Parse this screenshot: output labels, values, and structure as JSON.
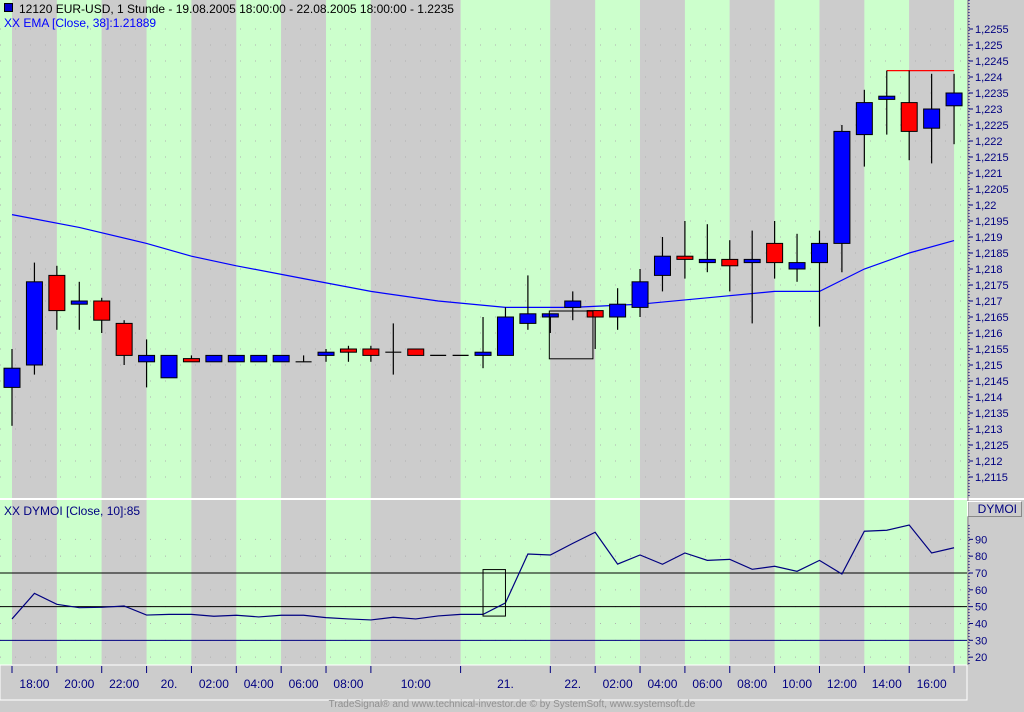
{
  "header": {
    "symbol_icon": "blue-square-icon",
    "title": "12120  EUR-USD, 1 Stunde - 19.08.2005 18:00:00 - 22.08.2005 18:00:00 - 1.2235",
    "ema_label": "XX EMA [Close, 38]:1.21889",
    "dymoi_label": "XX DYMOI [Close, 10]:85",
    "dymoi_axis_title": "DYMOI"
  },
  "footer": "TradeSignal® and www.technical-investor.de © by  SystemSoft, www.systemsoft.de",
  "colors": {
    "up": "#0000ff",
    "down": "#ff0000",
    "ema": "#0000ff",
    "indicator": "#000080",
    "band_light": "#ccffcc",
    "band_dark": "#cccccc",
    "resistance": "#ff0000"
  },
  "chart_data": [
    {
      "type": "candlestick",
      "title": "12120  EUR-USD, 1 Stunde",
      "ylim": [
        1.211,
        1.2265
      ],
      "y_ticks": [
        "1,2255",
        "1,225",
        "1,2245",
        "1,224",
        "1,2235",
        "1,223",
        "1,2225",
        "1,222",
        "1,2215",
        "1,221",
        "1,2205",
        "1,22",
        "1,2195",
        "1,219",
        "1,2185",
        "1,218",
        "1,2175",
        "1,217",
        "1,2165",
        "1,216",
        "1,2155",
        "1,215",
        "1,2145",
        "1,214",
        "1,2135",
        "1,213",
        "1,2125",
        "1,212",
        "1,2115"
      ],
      "ohlc_fields": [
        "open",
        "high",
        "low",
        "close"
      ],
      "candles": [
        [
          1.2143,
          1.2155,
          1.2131,
          1.2149
        ],
        [
          1.215,
          1.2182,
          1.2147,
          1.2176
        ],
        [
          1.2178,
          1.2181,
          1.2161,
          1.2167
        ],
        [
          1.2169,
          1.2176,
          1.2161,
          1.217
        ],
        [
          1.217,
          1.2171,
          1.216,
          1.2164
        ],
        [
          1.2163,
          1.2164,
          1.215,
          1.2153
        ],
        [
          1.2151,
          1.2158,
          1.2143,
          1.2153
        ],
        [
          1.2146,
          1.2153,
          1.2146,
          1.2153
        ],
        [
          1.2152,
          1.2153,
          1.2151,
          1.2151
        ],
        [
          1.2151,
          1.2153,
          1.2151,
          1.2153
        ],
        [
          1.2151,
          1.2153,
          1.2151,
          1.2153
        ],
        [
          1.2151,
          1.2153,
          1.2151,
          1.2153
        ],
        [
          1.2151,
          1.2153,
          1.2151,
          1.2153
        ],
        [
          1.2151,
          1.2153,
          1.2151,
          1.2151
        ],
        [
          1.2153,
          1.2155,
          1.2151,
          1.2154
        ],
        [
          1.2155,
          1.2156,
          1.2151,
          1.2154
        ],
        [
          1.2155,
          1.2156,
          1.2151,
          1.2153
        ],
        [
          1.2154,
          1.2163,
          1.2147,
          1.2154
        ],
        [
          1.2155,
          1.2155,
          1.2153,
          1.2153
        ],
        [
          1.2153,
          1.2153,
          1.2153,
          1.2153
        ],
        [
          1.2153,
          1.2153,
          1.2153,
          1.2153
        ],
        [
          1.2153,
          1.2165,
          1.2149,
          1.2154
        ],
        [
          1.2153,
          1.2168,
          1.2153,
          1.2165
        ],
        [
          1.2163,
          1.2178,
          1.2161,
          1.2166
        ],
        [
          1.2165,
          1.2166,
          1.216,
          1.2166
        ],
        [
          1.2168,
          1.2173,
          1.2164,
          1.217
        ],
        [
          1.2167,
          1.2167,
          1.2155,
          1.2165
        ],
        [
          1.2165,
          1.2174,
          1.2161,
          1.2169
        ],
        [
          1.2168,
          1.218,
          1.2165,
          1.2176
        ],
        [
          1.2178,
          1.219,
          1.2173,
          1.2184
        ],
        [
          1.2184,
          1.2195,
          1.2177,
          1.2183
        ],
        [
          1.2182,
          1.2194,
          1.2179,
          1.2183
        ],
        [
          1.2183,
          1.2189,
          1.2173,
          1.2181
        ],
        [
          1.2182,
          1.2192,
          1.2163,
          1.2183
        ],
        [
          1.2188,
          1.2195,
          1.2177,
          1.2182
        ],
        [
          1.218,
          1.2191,
          1.2176,
          1.2182
        ],
        [
          1.2182,
          1.2192,
          1.2162,
          1.2188
        ],
        [
          1.2188,
          1.2225,
          1.2179,
          1.2223
        ],
        [
          1.2222,
          1.2236,
          1.2212,
          1.2232
        ],
        [
          1.2233,
          1.2242,
          1.2222,
          1.2234
        ],
        [
          1.2232,
          1.2242,
          1.2214,
          1.2223
        ],
        [
          1.2224,
          1.2241,
          1.2213,
          1.223
        ],
        [
          1.2231,
          1.2241,
          1.2219,
          1.2235
        ]
      ],
      "ema_series": {
        "name": "XX EMA [Close, 38]",
        "points": [
          [
            0,
            1.2197
          ],
          [
            3,
            1.2193
          ],
          [
            6,
            1.2188
          ],
          [
            8,
            1.2184
          ],
          [
            10,
            1.2181
          ],
          [
            13,
            1.2177
          ],
          [
            16,
            1.2173
          ],
          [
            19,
            1.217
          ],
          [
            22,
            1.2168
          ],
          [
            25,
            1.2168
          ],
          [
            28,
            1.2169
          ],
          [
            31,
            1.2171
          ],
          [
            34,
            1.2173
          ],
          [
            36,
            1.2173
          ],
          [
            38,
            1.218
          ],
          [
            40,
            1.2185
          ],
          [
            42,
            1.21889
          ]
        ]
      },
      "resistance_line": {
        "price": 1.2242,
        "from_index": 39,
        "to_index": 42
      },
      "highlight_box": {
        "from_index": 24,
        "to_index": 25.9,
        "price_high": 1.217,
        "price_low": 1.21585
      },
      "x_labels": [
        {
          "label": "18:00",
          "from": 0,
          "to": 2
        },
        {
          "label": "20:00",
          "from": 2,
          "to": 4
        },
        {
          "label": "22:00",
          "from": 4,
          "to": 6
        },
        {
          "label": "20.",
          "from": 6,
          "to": 8
        },
        {
          "label": "02:00",
          "from": 8,
          "to": 10
        },
        {
          "label": "04:00",
          "from": 10,
          "to": 12
        },
        {
          "label": "06:00",
          "from": 12,
          "to": 14
        },
        {
          "label": "08:00",
          "from": 14,
          "to": 16
        },
        {
          "label": "10:00",
          "from": 16,
          "to": 20
        },
        {
          "label": "21.",
          "from": 20,
          "to": 24
        },
        {
          "label": "22.",
          "from": 24,
          "to": 26
        },
        {
          "label": "02:00",
          "from": 26,
          "to": 28
        },
        {
          "label": "04:00",
          "from": 28,
          "to": 30
        },
        {
          "label": "06:00",
          "from": 30,
          "to": 32
        },
        {
          "label": "08:00",
          "from": 32,
          "to": 34
        },
        {
          "label": "10:00",
          "from": 34,
          "to": 36
        },
        {
          "label": "12:00",
          "from": 36,
          "to": 38
        },
        {
          "label": "14:00",
          "from": 38,
          "to": 40
        },
        {
          "label": "16:00",
          "from": 40,
          "to": 42
        }
      ]
    },
    {
      "type": "line",
      "title": "XX DYMOI [Close, 10]:85",
      "ylim": [
        16,
        102
      ],
      "y_ticks": [
        "90",
        "80",
        "70",
        "60",
        "50",
        "40",
        "30",
        "20"
      ],
      "reference_lines": [
        70,
        50,
        30
      ],
      "series": [
        {
          "name": "XX DYMOI [Close, 10]",
          "values": [
            42.7,
            57.9,
            51.4,
            49.4,
            49.6,
            50.4,
            45.0,
            45.4,
            45.4,
            44.3,
            44.9,
            43.9,
            44.9,
            44.9,
            43.5,
            42.7,
            42.1,
            43.7,
            42.7,
            44.5,
            45.4,
            45.4,
            52.2,
            81.3,
            80.7,
            87.6,
            94.2,
            75.3,
            80.7,
            75.2,
            81.9,
            77.5,
            78.1,
            72.2,
            74.0,
            71.0,
            77.5,
            69.4,
            94.8,
            95.4,
            98.5,
            81.9,
            85
          ]
        }
      ],
      "highlight_box": {
        "from_index": 21,
        "to_index": 22,
        "value_high": 75,
        "value_low": 45
      }
    }
  ]
}
